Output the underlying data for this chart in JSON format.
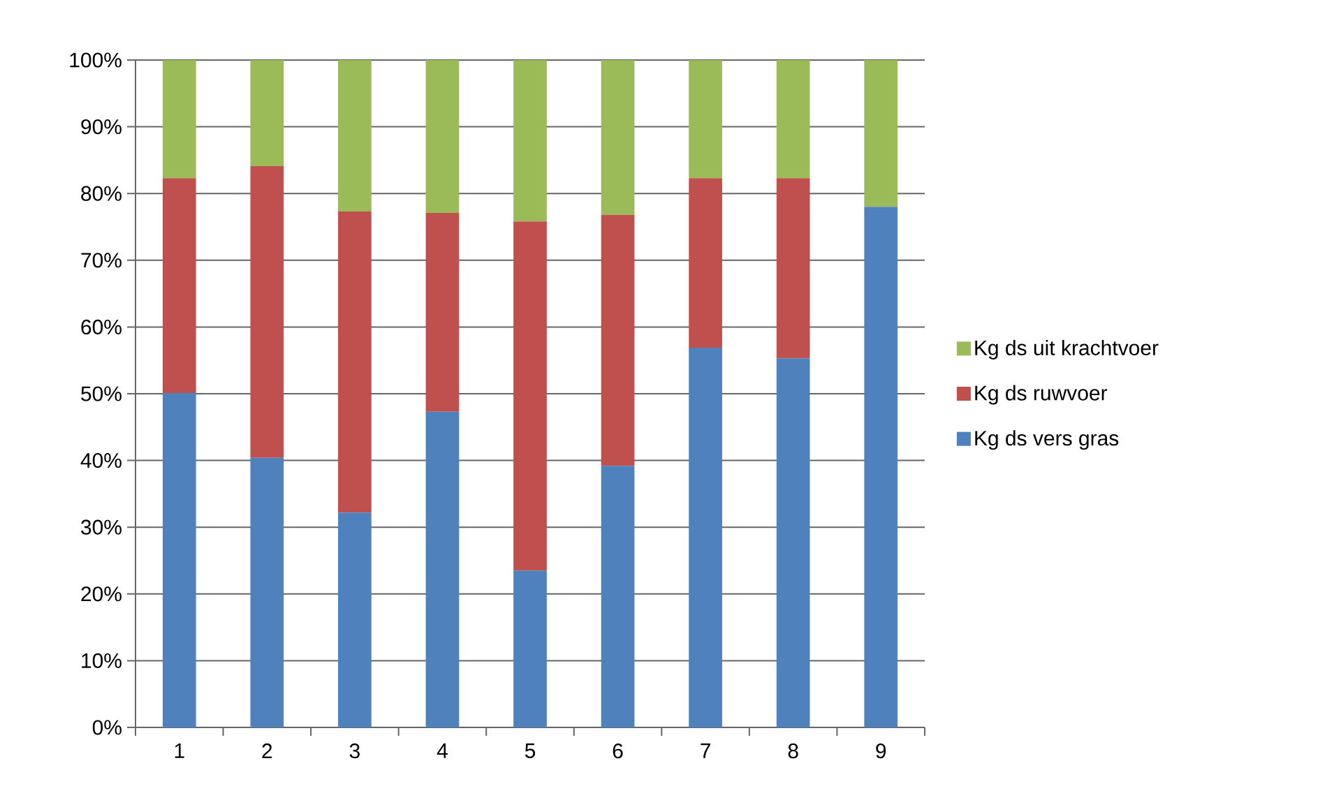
{
  "chart_data": {
    "type": "bar",
    "stacked": true,
    "categories": [
      "1",
      "2",
      "3",
      "4",
      "5",
      "6",
      "7",
      "8",
      "9"
    ],
    "series": [
      {
        "name": "Kg ds vers gras",
        "color": "#4f81bd",
        "values": [
          50.1,
          40.4,
          32.2,
          47.3,
          23.5,
          39.2,
          56.9,
          55.3,
          78.0
        ]
      },
      {
        "name": "Kg ds ruwvoer",
        "color": "#c0504d",
        "values": [
          32.2,
          43.7,
          45.1,
          29.8,
          52.3,
          37.6,
          25.4,
          27.0,
          0
        ]
      },
      {
        "name": "Kg ds uit krachtvoer",
        "color": "#9bbb59",
        "values": [
          17.7,
          15.9,
          22.7,
          22.9,
          24.2,
          23.2,
          17.7,
          17.7,
          22.0
        ]
      }
    ],
    "ylim": [
      0,
      100
    ],
    "yticks": [
      {
        "value": 0,
        "label": "0%"
      },
      {
        "value": 10,
        "label": "10%"
      },
      {
        "value": 20,
        "label": "20%"
      },
      {
        "value": 30,
        "label": "30%"
      },
      {
        "value": 40,
        "label": "40%"
      },
      {
        "value": 50,
        "label": "50%"
      },
      {
        "value": 60,
        "label": "60%"
      },
      {
        "value": 70,
        "label": "70%"
      },
      {
        "value": 80,
        "label": "80%"
      },
      {
        "value": 90,
        "label": "90%"
      },
      {
        "value": 100,
        "label": "100%"
      }
    ],
    "grid": "y",
    "legend": "right"
  }
}
